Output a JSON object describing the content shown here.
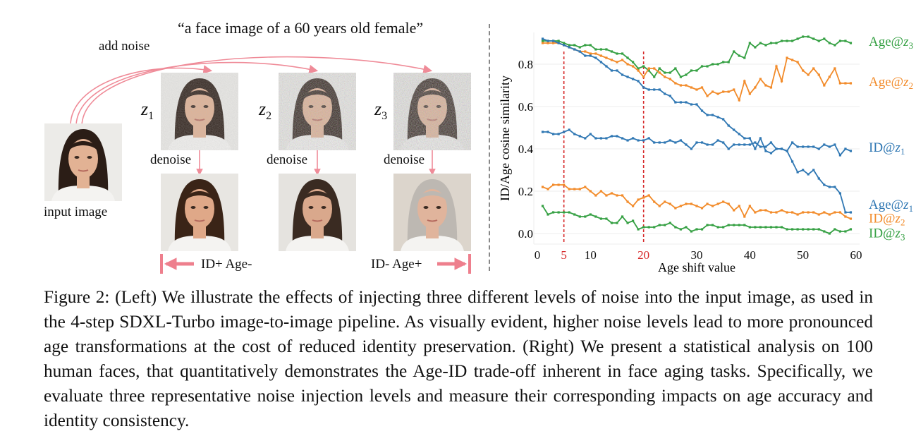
{
  "figure": {
    "prompt": "“a face image of a 60 years old female”",
    "add_noise": "add noise",
    "input_label": "input image",
    "denoise": [
      "denoise",
      "denoise",
      "denoise"
    ],
    "z_labels": [
      {
        "base": "z",
        "sub": "1"
      },
      {
        "base": "z",
        "sub": "2"
      },
      {
        "base": "z",
        "sub": "3"
      }
    ],
    "arrow_left": "ID+ Age-",
    "arrow_right": "ID- Age+",
    "colors": {
      "arrow": "#ee7f8d",
      "blue": "#2f77b3",
      "orange": "#f28b2a",
      "green": "#35a043",
      "red_dash": "#d62728"
    }
  },
  "caption": "Figure 2: (Left) We illustrate the effects of injecting three different levels of noise into the input image, as used in the 4-step SDXL-Turbo image-to-image pipeline. As visually evident, higher noise levels lead to more pronounced age transformations at the cost of reduced identity preservation. (Right) We present a statistical analysis on 100 human faces, that quantitatively demonstrates the Age-ID trade-off inherent in face aging tasks. Specifically, we evaluate three representative noise injection levels and measure their corresponding impacts on age accuracy and identity consistency.",
  "chart_data": {
    "type": "line",
    "xlabel": "Age shift value",
    "ylabel": "ID/Age cosine similarity",
    "xlim": [
      0,
      60
    ],
    "ylim": [
      -0.05,
      0.95
    ],
    "xticks": [
      0,
      5,
      10,
      20,
      30,
      40,
      50,
      60
    ],
    "highlight_xticks": [
      5,
      20
    ],
    "yticks": [
      "0.0",
      "0.2",
      "0.4",
      "0.6",
      "0.8"
    ],
    "grid": true,
    "vlines": [
      5,
      20
    ],
    "x_start": 1,
    "series": [
      {
        "name": "Age@z3",
        "label": "Age@",
        "sub": "3",
        "color": "#35a043",
        "values": [
          0.91,
          0.91,
          0.91,
          0.91,
          0.9,
          0.89,
          0.89,
          0.88,
          0.89,
          0.89,
          0.87,
          0.87,
          0.87,
          0.86,
          0.85,
          0.85,
          0.83,
          0.81,
          0.78,
          0.79,
          0.77,
          0.74,
          0.78,
          0.76,
          0.76,
          0.78,
          0.74,
          0.75,
          0.77,
          0.77,
          0.79,
          0.79,
          0.8,
          0.8,
          0.81,
          0.81,
          0.86,
          0.84,
          0.83,
          0.9,
          0.88,
          0.9,
          0.89,
          0.9,
          0.9,
          0.91,
          0.91,
          0.91,
          0.92,
          0.93,
          0.93,
          0.92,
          0.91,
          0.92,
          0.9,
          0.89,
          0.91,
          0.91,
          0.9
        ]
      },
      {
        "name": "Age@z2",
        "label": "Age@",
        "sub": "2",
        "color": "#f28b2a",
        "values": [
          0.9,
          0.9,
          0.9,
          0.9,
          0.89,
          0.88,
          0.87,
          0.86,
          0.86,
          0.85,
          0.85,
          0.84,
          0.83,
          0.82,
          0.81,
          0.82,
          0.8,
          0.79,
          0.77,
          0.74,
          0.78,
          0.78,
          0.76,
          0.74,
          0.73,
          0.71,
          0.7,
          0.7,
          0.69,
          0.68,
          0.69,
          0.65,
          0.67,
          0.66,
          0.67,
          0.67,
          0.68,
          0.63,
          0.72,
          0.66,
          0.69,
          0.73,
          0.7,
          0.69,
          0.79,
          0.72,
          0.83,
          0.82,
          0.81,
          0.77,
          0.75,
          0.78,
          0.75,
          0.7,
          0.74,
          0.78,
          0.71,
          0.71,
          0.71
        ]
      },
      {
        "name": "ID@z1",
        "label": "ID@",
        "sub": "1",
        "color": "#2f77b3",
        "values": [
          0.48,
          0.48,
          0.47,
          0.47,
          0.48,
          0.49,
          0.47,
          0.46,
          0.45,
          0.47,
          0.45,
          0.45,
          0.45,
          0.46,
          0.46,
          0.45,
          0.44,
          0.45,
          0.44,
          0.44,
          0.45,
          0.43,
          0.43,
          0.43,
          0.44,
          0.43,
          0.44,
          0.42,
          0.4,
          0.43,
          0.43,
          0.42,
          0.42,
          0.44,
          0.43,
          0.4,
          0.42,
          0.42,
          0.42,
          0.42,
          0.43,
          0.41,
          0.41,
          0.43,
          0.4,
          0.4,
          0.39,
          0.43,
          0.41,
          0.41,
          0.41,
          0.41,
          0.4,
          0.42,
          0.41,
          0.42,
          0.37,
          0.4,
          0.39
        ]
      },
      {
        "name": "Age@z1",
        "label": "Age@",
        "sub": "1",
        "color": "#2f77b3",
        "values": [
          0.92,
          0.91,
          0.91,
          0.9,
          0.89,
          0.88,
          0.87,
          0.86,
          0.84,
          0.84,
          0.83,
          0.81,
          0.79,
          0.77,
          0.77,
          0.75,
          0.74,
          0.73,
          0.72,
          0.69,
          0.68,
          0.68,
          0.68,
          0.66,
          0.65,
          0.62,
          0.62,
          0.62,
          0.61,
          0.61,
          0.58,
          0.56,
          0.56,
          0.55,
          0.54,
          0.51,
          0.49,
          0.47,
          0.45,
          0.45,
          0.4,
          0.45,
          0.39,
          0.38,
          0.4,
          0.4,
          0.39,
          0.34,
          0.29,
          0.3,
          0.28,
          0.3,
          0.26,
          0.23,
          0.22,
          0.22,
          0.19,
          0.1,
          0.1
        ]
      },
      {
        "name": "ID@z2",
        "label": "ID@",
        "sub": "2",
        "color": "#f28b2a",
        "values": [
          0.22,
          0.21,
          0.23,
          0.23,
          0.23,
          0.21,
          0.21,
          0.21,
          0.22,
          0.2,
          0.18,
          0.2,
          0.18,
          0.19,
          0.18,
          0.18,
          0.15,
          0.13,
          0.16,
          0.17,
          0.18,
          0.15,
          0.13,
          0.15,
          0.14,
          0.12,
          0.13,
          0.14,
          0.14,
          0.13,
          0.12,
          0.14,
          0.13,
          0.14,
          0.15,
          0.14,
          0.11,
          0.13,
          0.08,
          0.13,
          0.1,
          0.11,
          0.11,
          0.1,
          0.1,
          0.11,
          0.1,
          0.1,
          0.09,
          0.1,
          0.1,
          0.1,
          0.09,
          0.1,
          0.09,
          0.1,
          0.1,
          0.08,
          0.07
        ]
      },
      {
        "name": "ID@z3",
        "label": "ID@",
        "sub": "3",
        "color": "#35a043",
        "values": [
          0.13,
          0.09,
          0.1,
          0.1,
          0.1,
          0.1,
          0.09,
          0.08,
          0.08,
          0.09,
          0.08,
          0.07,
          0.07,
          0.05,
          0.05,
          0.08,
          0.05,
          0.06,
          0.02,
          0.03,
          0.03,
          0.03,
          0.04,
          0.04,
          0.05,
          0.03,
          0.02,
          0.03,
          0.01,
          0.02,
          0.02,
          0.04,
          0.04,
          0.03,
          0.03,
          0.04,
          0.04,
          0.04,
          0.04,
          0.03,
          0.03,
          0.03,
          0.03,
          0.03,
          0.03,
          0.03,
          0.02,
          0.02,
          0.02,
          0.02,
          0.02,
          0.02,
          0.02,
          0.01,
          0.0,
          0.02,
          0.01,
          0.01,
          0.02
        ]
      }
    ]
  }
}
